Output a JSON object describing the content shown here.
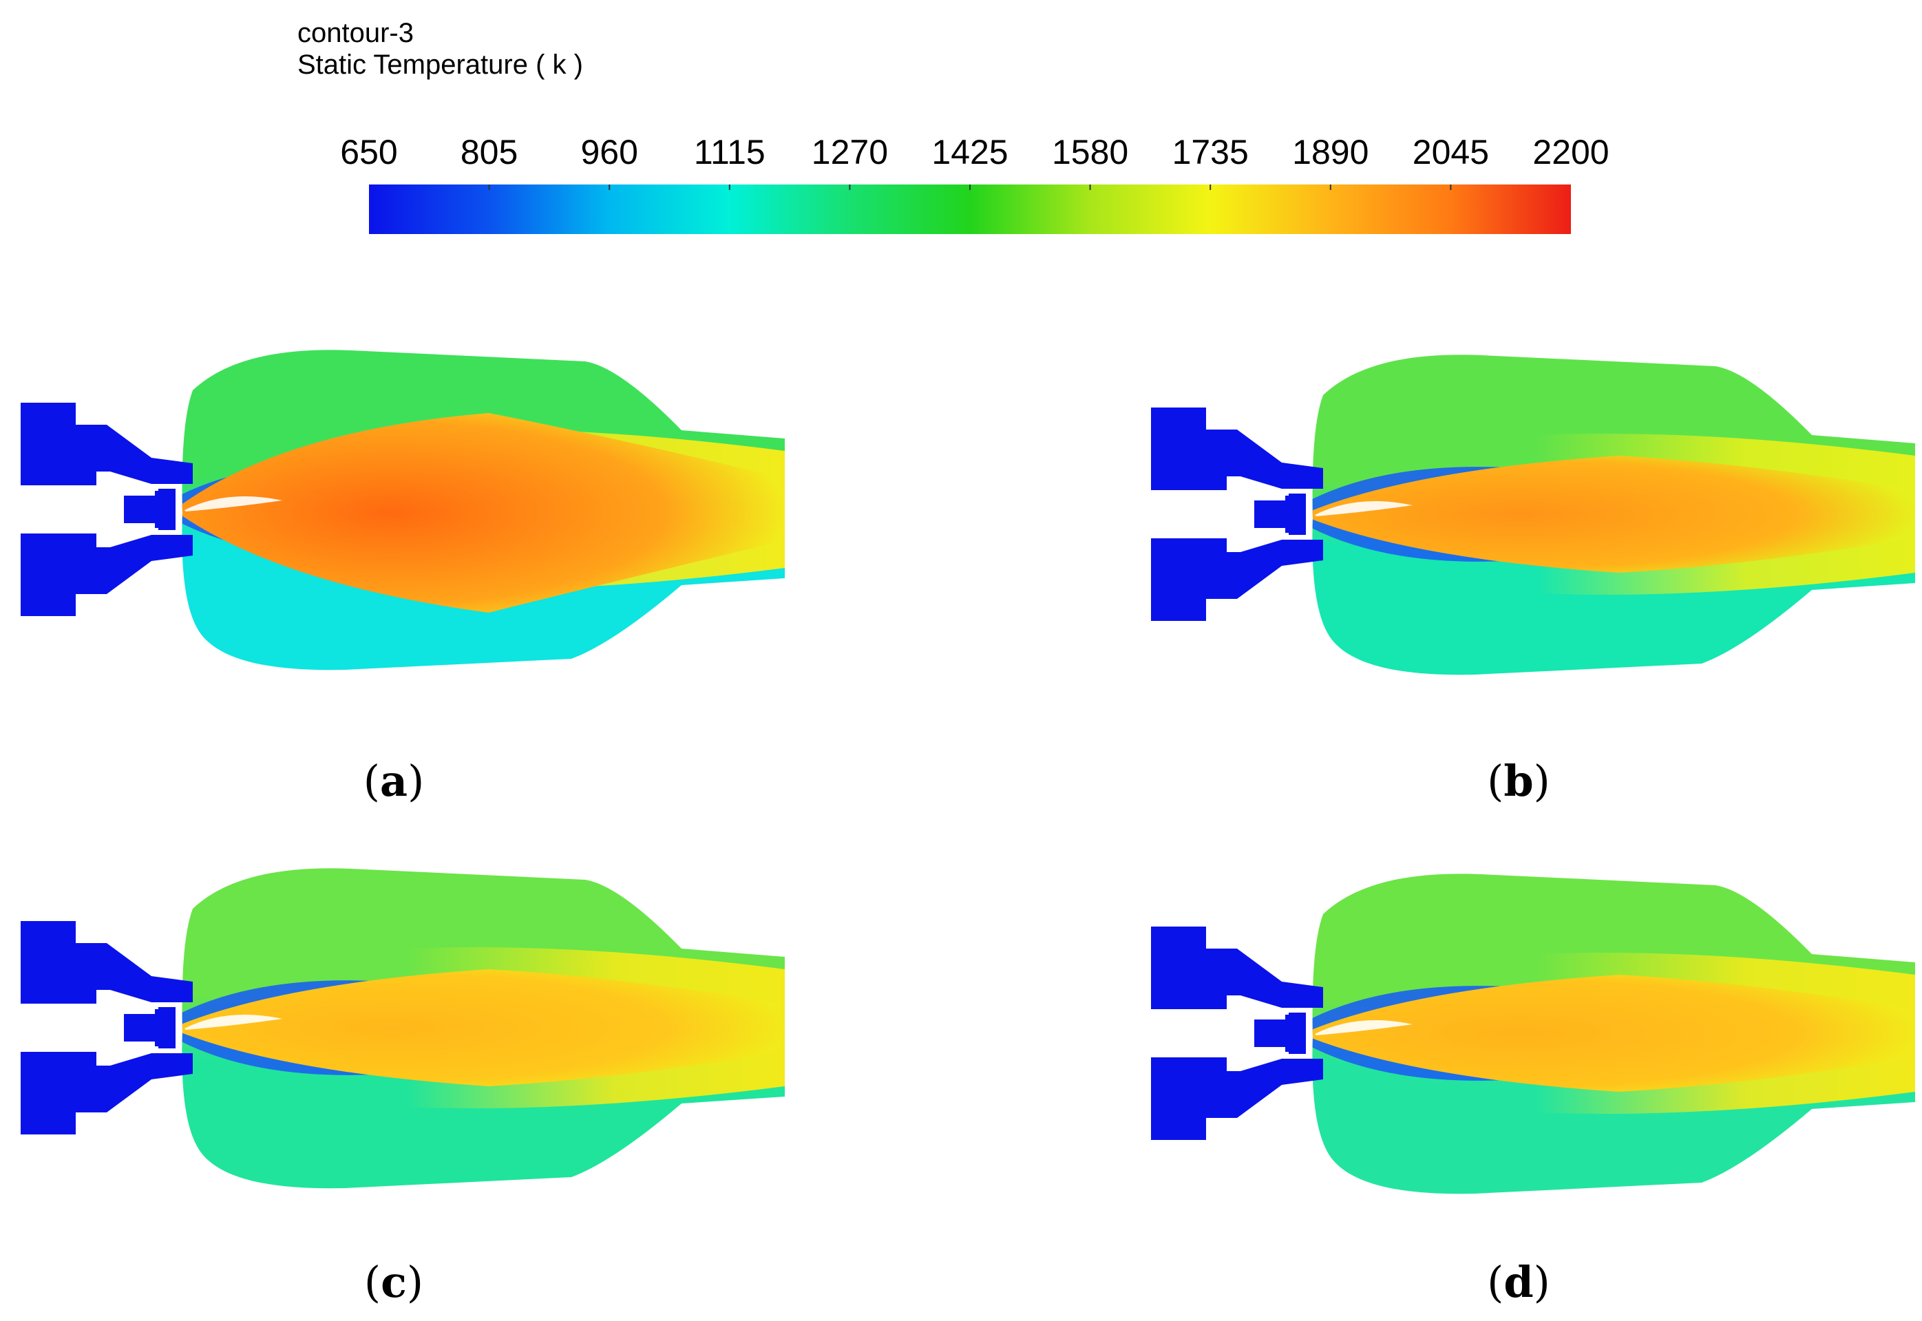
{
  "legend": {
    "name": "contour-3",
    "variable": "Static Temperature ( k )",
    "ticks": [
      "650",
      "805",
      "960",
      "1115",
      "1270",
      "1425",
      "1580",
      "1735",
      "1890",
      "2045",
      "2200"
    ],
    "min": 650,
    "max": 2200,
    "colormap": [
      "#0a12ea",
      "#0a52ef",
      "#00b8f0",
      "#00f0d8",
      "#18e070",
      "#22d41c",
      "#a8e61a",
      "#f4f414",
      "#ffb418",
      "#ff7a14",
      "#ec1e16"
    ]
  },
  "panels": [
    {
      "id": "a",
      "label": "a",
      "hot_core": "#ff6a10",
      "core_mid": "#ffa41a",
      "upper_zone": "#3ee05a",
      "lower_zone": "#0ee4e0",
      "tail": "#f2ec1c"
    },
    {
      "id": "b",
      "label": "b",
      "hot_core": "#ff9418",
      "core_mid": "#ffb21a",
      "upper_zone": "#5ee24a",
      "lower_zone": "#16e6b0",
      "tail": "#e6f01c"
    },
    {
      "id": "c",
      "label": "c",
      "hot_core": "#ffb81a",
      "core_mid": "#ffc81c",
      "upper_zone": "#6ae448",
      "lower_zone": "#20e49c",
      "tail": "#f2ea1a"
    },
    {
      "id": "d",
      "label": "d",
      "hot_core": "#ffb41a",
      "core_mid": "#ffc41c",
      "upper_zone": "#6ce446",
      "lower_zone": "#22e4a0",
      "tail": "#f2ea1a"
    }
  ]
}
